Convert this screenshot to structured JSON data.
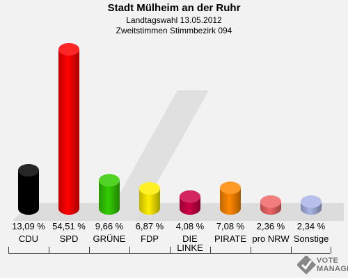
{
  "chart_data": {
    "type": "bar",
    "title": "Stadt Mülheim an der Ruhr",
    "subtitle1": "Landtagswahl 13.05.2012",
    "subtitle2": "Zweitstimmen Stimmbezirk 094",
    "categories": [
      "CDU",
      "SPD",
      "GRÜNE",
      "FDP",
      "DIE LINKE",
      "PIRATE",
      "pro NRW",
      "Sonstige"
    ],
    "values": [
      13.09,
      54.51,
      9.66,
      6.87,
      4.08,
      7.08,
      2.36,
      2.34
    ],
    "value_labels": [
      "13,09 %",
      "54,51 %",
      "9,66 %",
      "6,87 %",
      "4,08 %",
      "7,08 %",
      "2,36 %",
      "2,34 %"
    ],
    "colors": [
      "#000000",
      "#ff0000",
      "#33cc00",
      "#ffee00",
      "#cc0044",
      "#ff8800",
      "#ee6666",
      "#aab5e6"
    ]
  },
  "logo": {
    "line1": "VOTE",
    "line2": "MANAGER"
  }
}
